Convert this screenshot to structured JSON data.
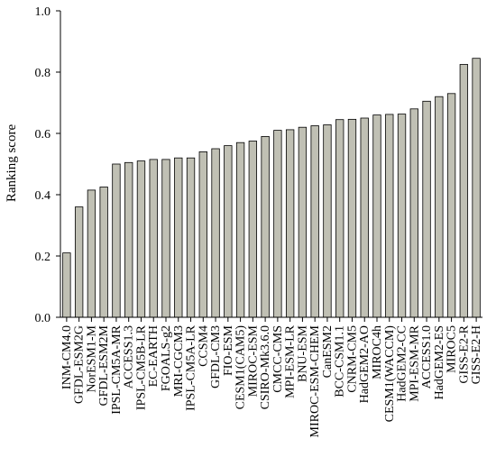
{
  "chart_data": {
    "type": "bar",
    "ylabel": "Ranking score",
    "xlabel": "",
    "ylim": [
      0,
      1.0
    ],
    "yticks": [
      "0.0",
      "0.2",
      "0.4",
      "0.6",
      "0.8",
      "1.0"
    ],
    "grid": false,
    "bar_color": "#c0c0b4",
    "bar_edge_color": "#000000",
    "categories": [
      "INM-CM4.0",
      "GFDL-ESM2G",
      "NorESM1-M",
      "GFDL-ESM2M",
      "IPSL-CM5A-MR",
      "ACCESS1.3",
      "IPSL-CM5B-LR",
      "EC-EARTH",
      "FGOALS-g2",
      "MRI-CGCM3",
      "IPSL-CM5A-LR",
      "CCSM4",
      "GFDL-CM3",
      "FIO-ESM",
      "CESM1(CAM5)",
      "MIROC-ESM",
      "CSIRO-Mk3.6.0",
      "CMCC-CMS",
      "MPI-ESM-LR",
      "BNU-ESM",
      "MIROC-ESM-CHEM",
      "CanESM2",
      "BCC-CSM1.1",
      "CNRM-CM5",
      "HadGEM2-AO",
      "MIROC4h",
      "CESM1(WACCM)",
      "HadGEM2-CC",
      "MPI-ESM-MR",
      "ACCESS1.0",
      "HadGEM2-ES",
      "MIROC5",
      "GISS-E2-R",
      "GISS-E2-H"
    ],
    "values": [
      0.21,
      0.36,
      0.415,
      0.425,
      0.5,
      0.505,
      0.51,
      0.515,
      0.515,
      0.52,
      0.52,
      0.54,
      0.55,
      0.56,
      0.57,
      0.575,
      0.59,
      0.61,
      0.612,
      0.62,
      0.625,
      0.628,
      0.645,
      0.646,
      0.65,
      0.66,
      0.662,
      0.663,
      0.68,
      0.705,
      0.72,
      0.73,
      0.825,
      0.845
    ]
  }
}
